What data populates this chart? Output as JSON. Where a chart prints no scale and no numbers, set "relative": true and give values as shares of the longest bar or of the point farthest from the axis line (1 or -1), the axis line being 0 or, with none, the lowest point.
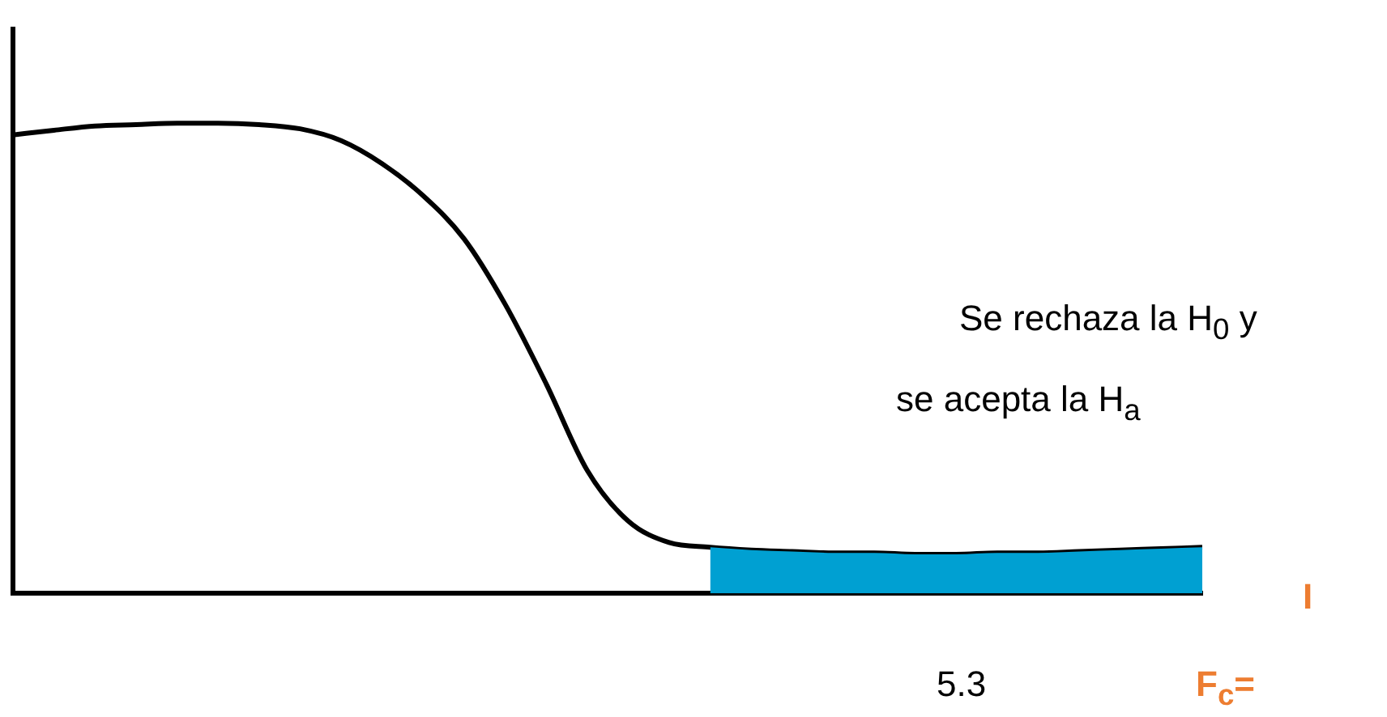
{
  "chart_data": {
    "type": "line",
    "relative": true,
    "grid": false,
    "legend": false,
    "marker": "none",
    "line_style": "solid",
    "categories": [
      null,
      null,
      null,
      null,
      null,
      null,
      null,
      null,
      null,
      null,
      null,
      null,
      null,
      null,
      null,
      null,
      null,
      null,
      null,
      null,
      null,
      null,
      null,
      null,
      null,
      null,
      null,
      null,
      null,
      null
    ],
    "series": [
      {
        "color": "#000000",
        "values": [
          0.975,
          0.985,
          0.994,
          0.997,
          1,
          1,
          0.997,
          0.988,
          0.963,
          0.914,
          0.846,
          0.754,
          0.615,
          0.446,
          0.262,
          0.154,
          0.108,
          0.098,
          0.092,
          0.089,
          0.086,
          0.086,
          0.083,
          0.083,
          0.086,
          0.086,
          0.089,
          0.092,
          0.095,
          0.098
        ]
      },
      {
        "type": "area",
        "color": "#00a0d2",
        "values": [
          null,
          null,
          null,
          null,
          null,
          null,
          null,
          null,
          null,
          null,
          null,
          null,
          null,
          null,
          null,
          null,
          null,
          0.098,
          0.092,
          0.089,
          0.086,
          0.086,
          0.083,
          0.083,
          0.086,
          0.086,
          0.089,
          0.092,
          0.095,
          0.098
        ]
      }
    ],
    "annotations": [
      "Se rechaza la H$_{0}$ y",
      "se acepta la H$_{a}$",
      "5.3",
      "F$_{c}$=",
      "I"
    ]
  }
}
